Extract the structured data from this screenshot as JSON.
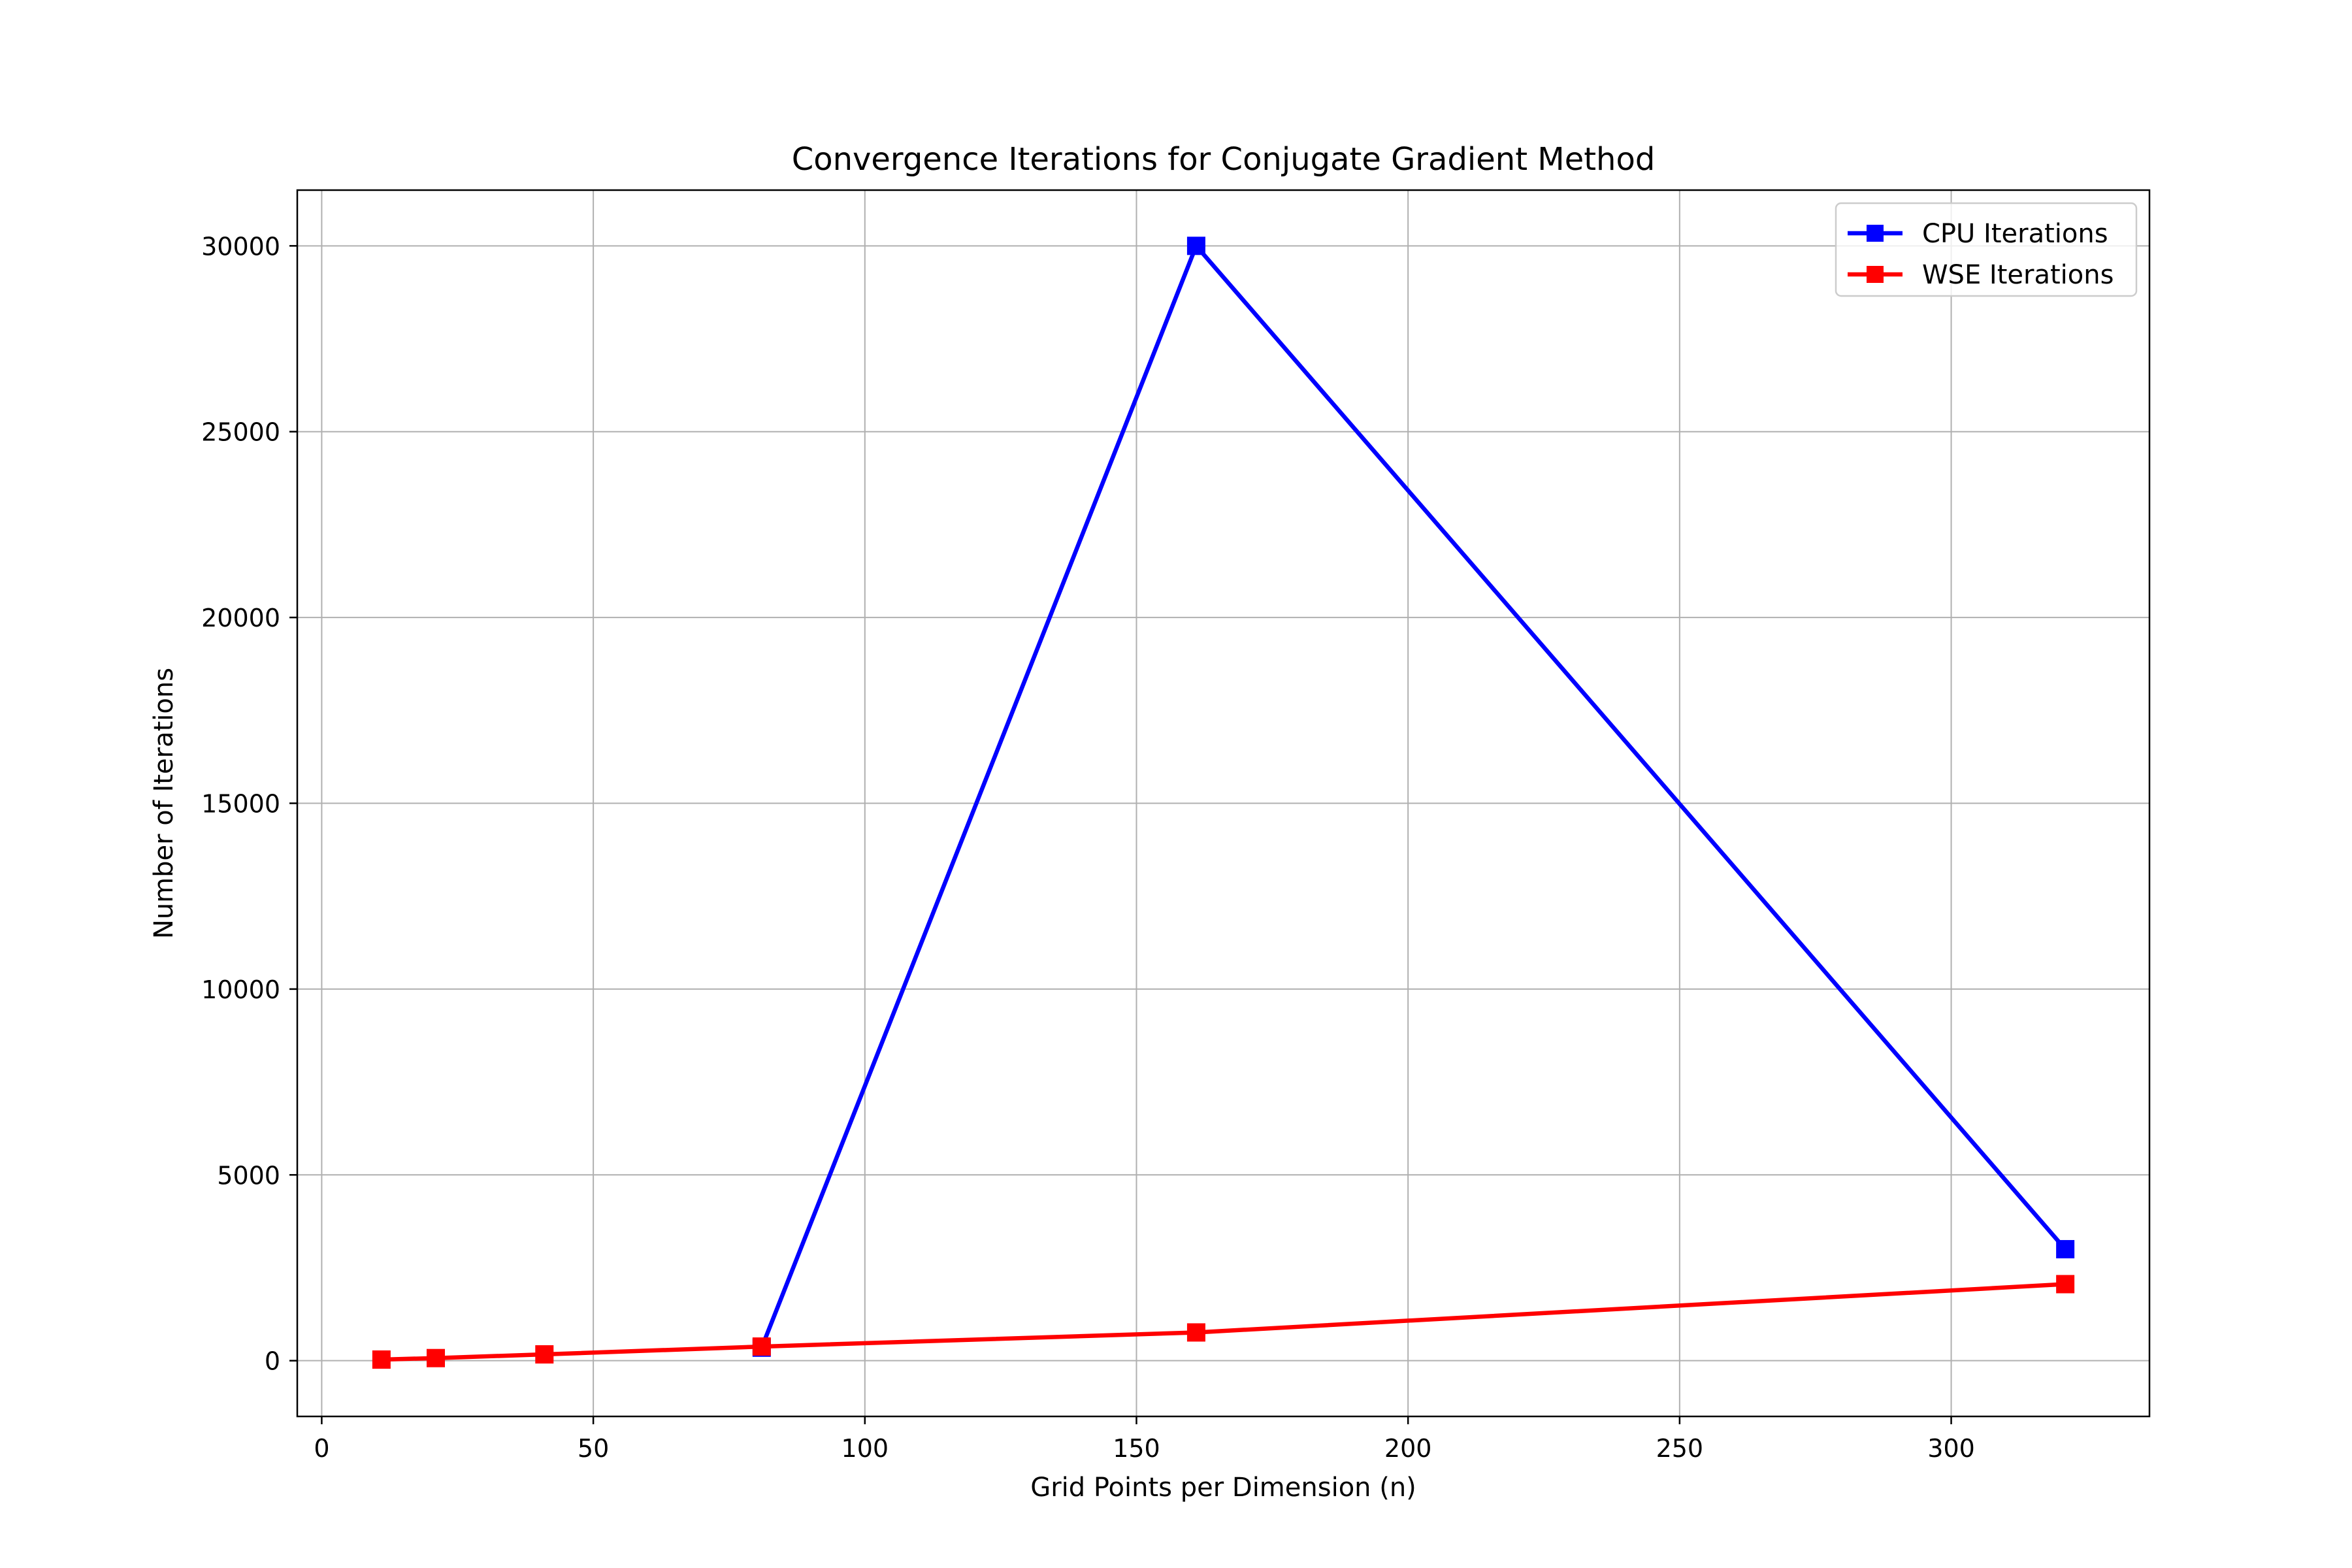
{
  "chart_data": {
    "type": "line",
    "title": "Convergence Iterations for Conjugate Gradient Method",
    "xlabel": "Grid Points per Dimension (n)",
    "ylabel": "Number of Iterations",
    "xlim": [
      -4.5,
      336.5
    ],
    "ylim": [
      -1500,
      31500
    ],
    "xticks": [
      0,
      50,
      100,
      150,
      200,
      250,
      300
    ],
    "yticks": [
      0,
      5000,
      10000,
      15000,
      20000,
      25000,
      30000
    ],
    "grid": true,
    "legend_position": "top-right",
    "series": [
      {
        "name": "CPU Iterations",
        "color": "#0000ff",
        "marker": "square",
        "x": [
          81,
          161,
          321
        ],
        "y": [
          350,
          30000,
          3000
        ]
      },
      {
        "name": "WSE Iterations",
        "color": "#ff0000",
        "marker": "square",
        "x": [
          11,
          21,
          41,
          81,
          161,
          321
        ],
        "y": [
          30,
          70,
          170,
          380,
          760,
          2060
        ]
      }
    ]
  }
}
